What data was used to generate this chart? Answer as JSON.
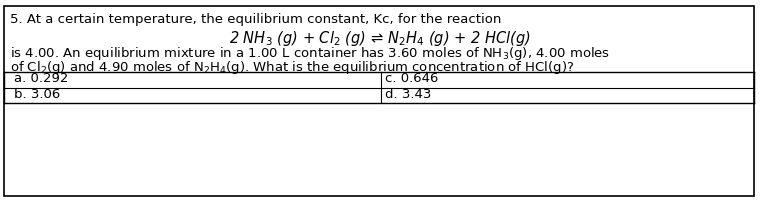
{
  "line1": "5. At a certain temperature, the equilibrium constant, Kc, for the reaction",
  "equation": "2 NH$_3$ (g) + Cl$_2$ (g) ⇌ N$_2$H$_4$ (g) + 2 HCl(g)",
  "line3": "is 4.00. An equilibrium mixture in a 1.00 L container has 3.60 moles of NH$_3$(g), 4.00 moles",
  "line4": "of Cl$_2$(g) and 4.90 moles of N$_2$H$_4$(g). What is the equilibrium concentration of HCl(g)?",
  "answer_a": "a. 0.292",
  "answer_b": "b. 3.06",
  "answer_c": "c. 0.646",
  "answer_d": "d. 3.43",
  "bg_color": "#ffffff",
  "border_color": "#000000",
  "text_color": "#000000",
  "font_size": 9.5,
  "eq_font_size": 10.5
}
